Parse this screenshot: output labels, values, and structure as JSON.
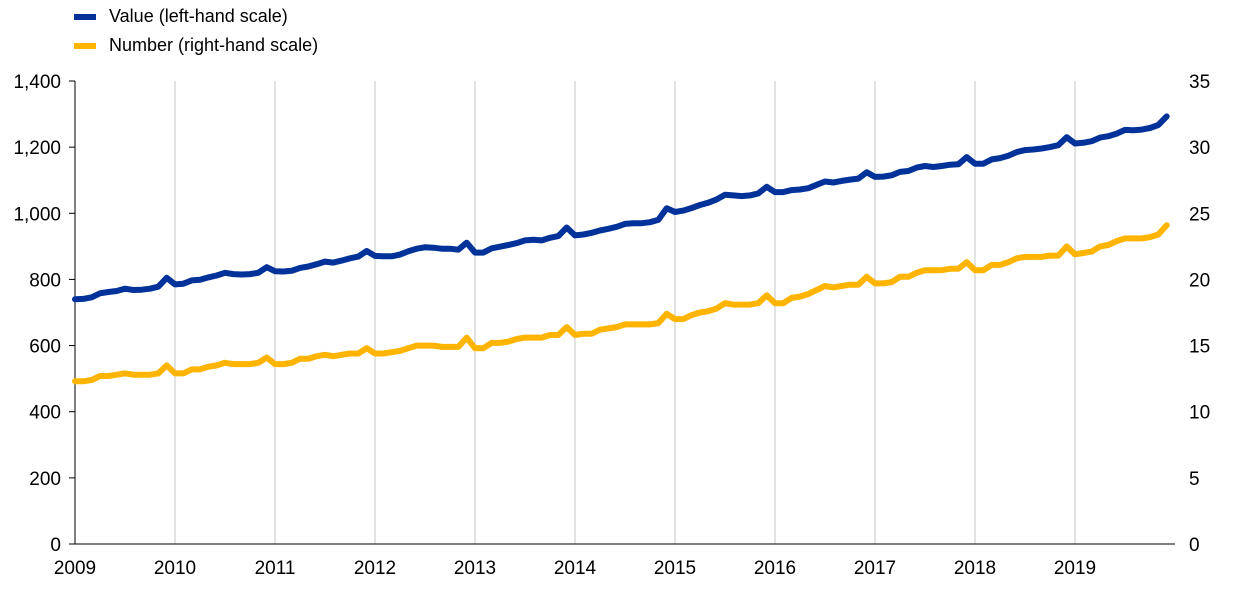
{
  "chart_data": {
    "type": "line",
    "title": "",
    "xlabel": "",
    "ylabel": "",
    "x_ticks": [
      "2009",
      "2010",
      "2011",
      "2012",
      "2013",
      "2014",
      "2015",
      "2016",
      "2017",
      "2018",
      "2019"
    ],
    "x_range": [
      2009,
      2020
    ],
    "y_left": {
      "ticks": [
        "0",
        "200",
        "400",
        "600",
        "800",
        "1,000",
        "1,200",
        "1,400"
      ],
      "range": [
        0,
        1400
      ]
    },
    "y_right": {
      "ticks": [
        "0",
        "5",
        "10",
        "15",
        "20",
        "25",
        "30",
        "35"
      ],
      "range": [
        0,
        35
      ]
    },
    "grid": "vertical",
    "legend_position": "top-left",
    "series": [
      {
        "name": "Value (left-hand scale)",
        "color": "#003299",
        "axis": "left",
        "values": [
          740,
          741,
          746,
          758,
          762,
          765,
          772,
          768,
          769,
          772,
          778,
          805,
          785,
          787,
          797,
          799,
          806,
          812,
          820,
          816,
          815,
          816,
          820,
          837,
          825,
          824,
          826,
          835,
          839,
          846,
          854,
          851,
          857,
          864,
          869,
          886,
          871,
          870,
          870,
          875,
          885,
          893,
          897,
          896,
          893,
          893,
          890,
          911,
          881,
          881,
          894,
          899,
          904,
          910,
          918,
          920,
          918,
          926,
          931,
          957,
          933,
          936,
          941,
          948,
          953,
          959,
          968,
          970,
          970,
          973,
          980,
          1015,
          1004,
          1008,
          1016,
          1025,
          1032,
          1042,
          1056,
          1054,
          1052,
          1054,
          1060,
          1080,
          1064,
          1064,
          1070,
          1072,
          1076,
          1086,
          1096,
          1093,
          1098,
          1102,
          1105,
          1124,
          1110,
          1111,
          1115,
          1125,
          1128,
          1138,
          1143,
          1140,
          1143,
          1147,
          1148,
          1170,
          1150,
          1150,
          1163,
          1167,
          1174,
          1185,
          1191,
          1193,
          1196,
          1200,
          1206,
          1230,
          1211,
          1213,
          1218,
          1229,
          1233,
          1241,
          1252,
          1251,
          1253,
          1258,
          1267,
          1293
        ]
      },
      {
        "name": "Number (right-hand scale)",
        "color": "#FFB400",
        "axis": "right",
        "values": [
          12.3,
          12.3,
          12.4,
          12.7,
          12.7,
          12.8,
          12.9,
          12.8,
          12.8,
          12.8,
          12.9,
          13.5,
          12.9,
          12.9,
          13.2,
          13.2,
          13.4,
          13.5,
          13.7,
          13.6,
          13.6,
          13.6,
          13.7,
          14.1,
          13.6,
          13.6,
          13.7,
          14.0,
          14.0,
          14.2,
          14.3,
          14.2,
          14.3,
          14.4,
          14.4,
          14.8,
          14.4,
          14.4,
          14.5,
          14.6,
          14.8,
          15.0,
          15.0,
          15.0,
          14.9,
          14.9,
          14.9,
          15.6,
          14.8,
          14.8,
          15.2,
          15.2,
          15.3,
          15.5,
          15.6,
          15.6,
          15.6,
          15.8,
          15.8,
          16.4,
          15.8,
          15.9,
          15.9,
          16.2,
          16.3,
          16.4,
          16.6,
          16.6,
          16.6,
          16.6,
          16.7,
          17.4,
          17.0,
          17.0,
          17.3,
          17.5,
          17.6,
          17.8,
          18.2,
          18.1,
          18.1,
          18.1,
          18.2,
          18.8,
          18.2,
          18.2,
          18.6,
          18.7,
          18.9,
          19.2,
          19.5,
          19.4,
          19.5,
          19.6,
          19.6,
          20.2,
          19.7,
          19.7,
          19.8,
          20.2,
          20.2,
          20.5,
          20.7,
          20.7,
          20.7,
          20.8,
          20.8,
          21.3,
          20.7,
          20.7,
          21.1,
          21.1,
          21.3,
          21.6,
          21.7,
          21.7,
          21.7,
          21.8,
          21.8,
          22.5,
          21.9,
          22.0,
          22.1,
          22.5,
          22.6,
          22.9,
          23.1,
          23.1,
          23.1,
          23.2,
          23.4,
          24.1
        ]
      }
    ]
  }
}
